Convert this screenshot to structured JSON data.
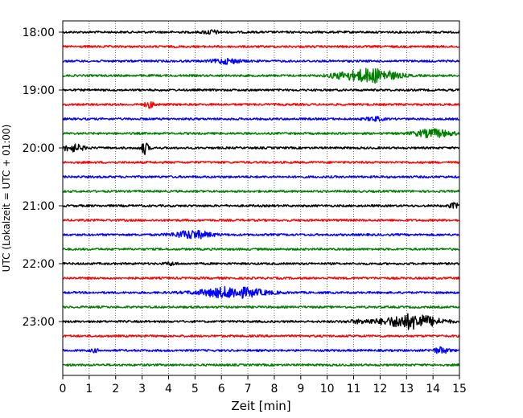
{
  "chart_data": {
    "type": "line",
    "title": "",
    "xlabel": "Zeit  [min]",
    "ylabel": "UTC (Lokalzeit = UTC + 01:00)",
    "xlim": [
      0,
      15
    ],
    "x_ticks": [
      0,
      1,
      2,
      3,
      4,
      5,
      6,
      7,
      8,
      9,
      10,
      11,
      12,
      13,
      14,
      15
    ],
    "y_tick_labels": [
      "18:00",
      "19:00",
      "20:00",
      "21:00",
      "22:00",
      "23:00"
    ],
    "trace_interval_min": 15,
    "grid": "vertical dotted",
    "colors": [
      "#000000",
      "#ff0000",
      "#0000ff",
      "#008000"
    ],
    "traces": [
      {
        "start": "18:00",
        "color": "#000000",
        "events": [
          {
            "t": 5.6,
            "amp": 0.4,
            "width": 0.3
          }
        ]
      },
      {
        "start": "18:15",
        "color": "#ff0000",
        "events": []
      },
      {
        "start": "18:30",
        "color": "#0000ff",
        "events": [
          {
            "t": 6.2,
            "amp": 0.5,
            "width": 0.5
          }
        ]
      },
      {
        "start": "18:45",
        "color": "#008000",
        "events": [
          {
            "t": 11.7,
            "amp": 1.4,
            "width": 0.9
          },
          {
            "t": 10.5,
            "amp": 0.4,
            "width": 0.5
          }
        ]
      },
      {
        "start": "19:00",
        "color": "#000000",
        "events": []
      },
      {
        "start": "19:15",
        "color": "#ff0000",
        "events": [
          {
            "t": 3.3,
            "amp": 0.6,
            "width": 0.2
          }
        ]
      },
      {
        "start": "19:30",
        "color": "#0000ff",
        "events": [
          {
            "t": 11.8,
            "amp": 0.4,
            "width": 0.3
          }
        ]
      },
      {
        "start": "19:45",
        "color": "#008000",
        "events": [
          {
            "t": 14.0,
            "amp": 0.8,
            "width": 0.7
          }
        ]
      },
      {
        "start": "20:00",
        "color": "#000000",
        "events": [
          {
            "t": 0.4,
            "amp": 0.7,
            "width": 0.4
          },
          {
            "t": 3.1,
            "amp": 1.2,
            "width": 0.15
          }
        ]
      },
      {
        "start": "20:15",
        "color": "#ff0000",
        "events": []
      },
      {
        "start": "20:30",
        "color": "#0000ff",
        "events": []
      },
      {
        "start": "20:45",
        "color": "#008000",
        "events": []
      },
      {
        "start": "21:00",
        "color": "#000000",
        "events": [
          {
            "t": 14.8,
            "amp": 0.5,
            "width": 0.2
          }
        ]
      },
      {
        "start": "21:15",
        "color": "#ff0000",
        "events": []
      },
      {
        "start": "21:30",
        "color": "#0000ff",
        "events": [
          {
            "t": 4.9,
            "amp": 0.8,
            "width": 0.7
          }
        ]
      },
      {
        "start": "21:45",
        "color": "#008000",
        "events": []
      },
      {
        "start": "22:00",
        "color": "#000000",
        "events": [
          {
            "t": 4.1,
            "amp": 0.3,
            "width": 0.2
          }
        ]
      },
      {
        "start": "22:15",
        "color": "#ff0000",
        "events": []
      },
      {
        "start": "22:30",
        "color": "#0000ff",
        "events": [
          {
            "t": 6.4,
            "amp": 1.1,
            "width": 1.2
          }
        ]
      },
      {
        "start": "22:45",
        "color": "#008000",
        "events": []
      },
      {
        "start": "23:00",
        "color": "#000000",
        "events": [
          {
            "t": 13.2,
            "amp": 1.5,
            "width": 1.0
          },
          {
            "t": 11.3,
            "amp": 0.3,
            "width": 0.6
          }
        ]
      },
      {
        "start": "23:15",
        "color": "#ff0000",
        "events": []
      },
      {
        "start": "23:30",
        "color": "#0000ff",
        "events": [
          {
            "t": 14.3,
            "amp": 0.6,
            "width": 0.3
          },
          {
            "t": 1.2,
            "amp": 0.3,
            "width": 0.15
          }
        ]
      },
      {
        "start": "23:45",
        "color": "#008000",
        "events": []
      }
    ]
  }
}
